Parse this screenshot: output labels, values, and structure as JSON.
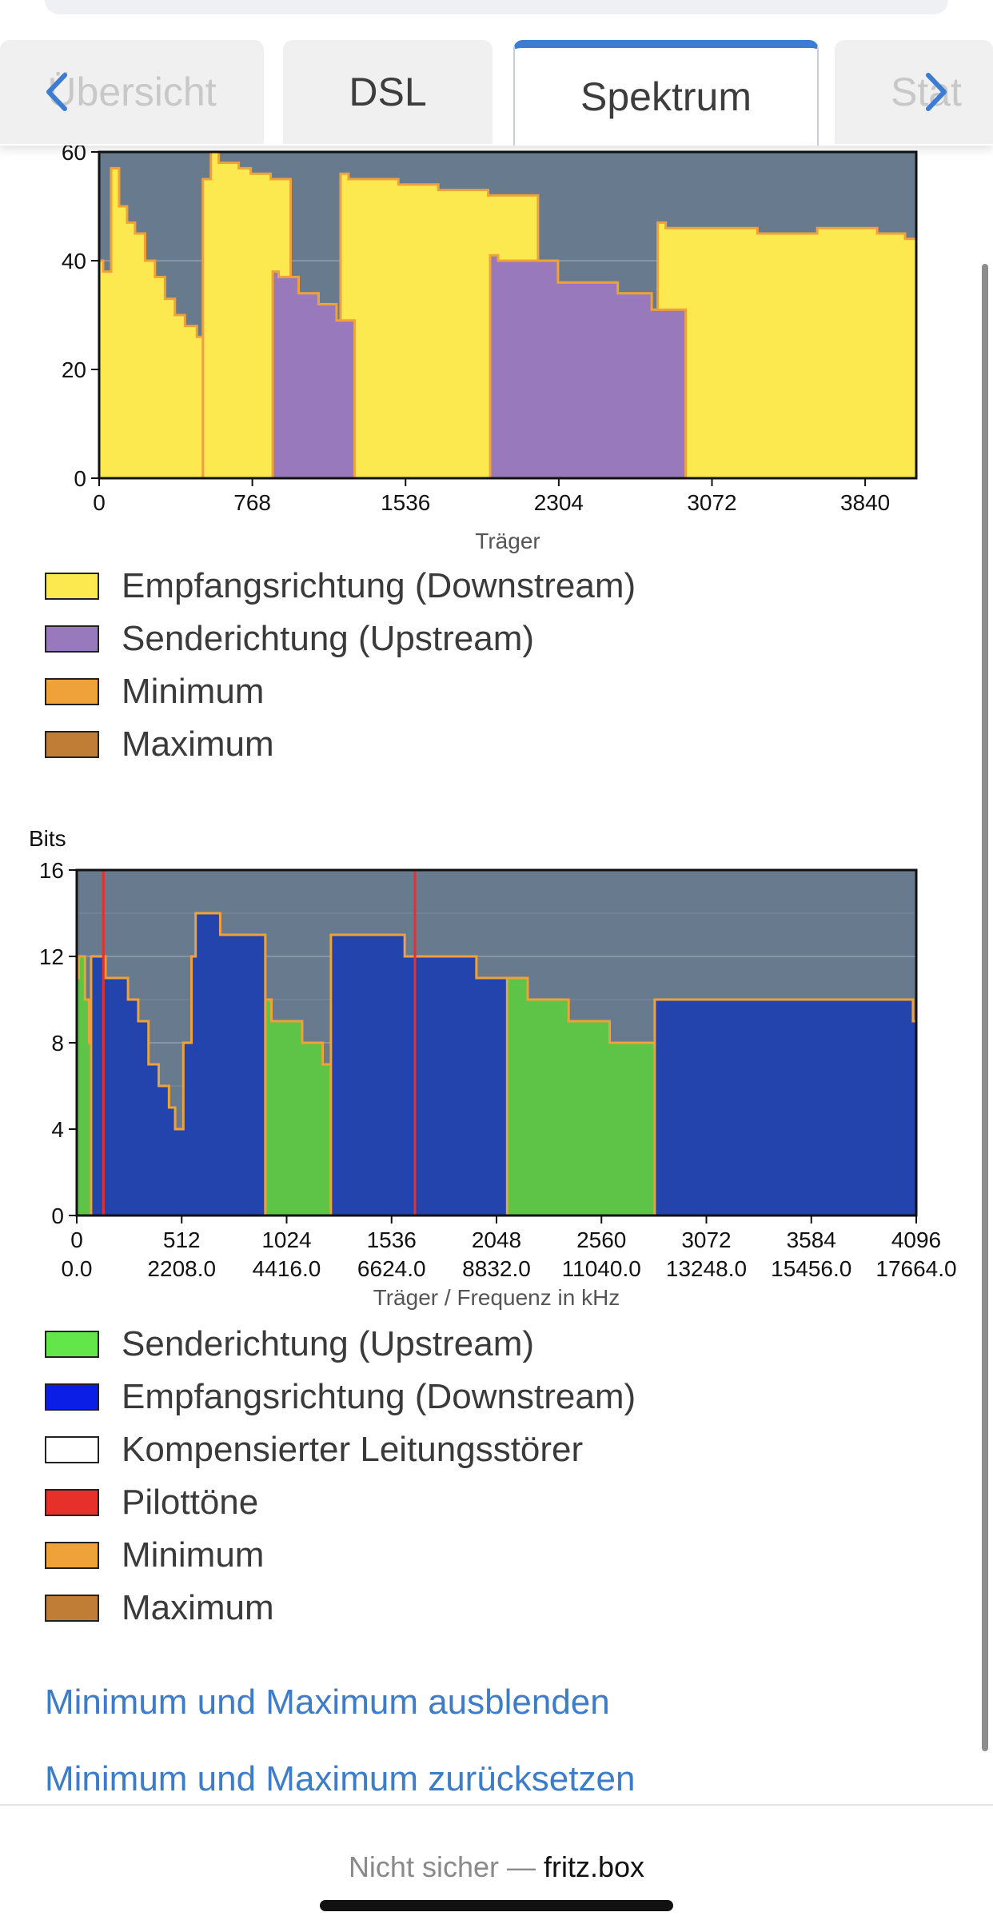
{
  "tabs": [
    {
      "label": "Übersicht",
      "active": false
    },
    {
      "label": "DSL",
      "active": false
    },
    {
      "label": "Spektrum",
      "active": true
    },
    {
      "label": "Stat",
      "active": false
    }
  ],
  "nav": {
    "prev_icon": "chevron-left-icon",
    "next_icon": "chevron-right-icon"
  },
  "chart_data": [
    {
      "type": "area",
      "title": "",
      "xlabel": "Träger",
      "ylabel": "",
      "xlim": [
        0,
        4096
      ],
      "ylim": [
        0,
        60
      ],
      "xticks": [
        0,
        768,
        1536,
        2304,
        3072,
        3840
      ],
      "yticks": [
        0,
        20,
        40,
        60
      ],
      "series": [
        {
          "name": "Empfangsrichtung (Downstream)",
          "color": "#fbe94f",
          "segments": [
            {
              "x": [
                0,
                20,
                60,
                100,
                140,
                180,
                230,
                280,
                330,
                380,
                430,
                490
              ],
              "y": [
                40,
                38,
                57,
                50,
                47,
                45,
                40,
                37,
                33,
                30,
                28,
                26
              ]
            },
            {
              "x": [
                520,
                560,
                600,
                700,
                760,
                860
              ],
              "y": [
                55,
                60,
                58,
                57,
                56,
                55
              ]
            },
            {
              "x": [
                1210,
                1250,
                1500,
                1700,
                1950
              ],
              "y": [
                56,
                55,
                54,
                53,
                52
              ]
            },
            {
              "x": [
                2800,
                2840,
                3300,
                3600,
                3900,
                4040
              ],
              "y": [
                47,
                46,
                45,
                46,
                45,
                44
              ]
            }
          ]
        },
        {
          "name": "Senderichtung (Upstream)",
          "color": "#9879bb",
          "segments": [
            {
              "x": [
                870,
                900,
                1000,
                1100,
                1190
              ],
              "y": [
                38,
                37,
                34,
                32,
                29
              ]
            },
            {
              "x": [
                1960,
                2000,
                2300,
                2600,
                2770
              ],
              "y": [
                41,
                40,
                36,
                34,
                31
              ]
            }
          ]
        },
        {
          "name": "Minimum",
          "color": "#efa13a",
          "values": []
        },
        {
          "name": "Maximum",
          "color": "#c07d35",
          "values": []
        }
      ],
      "legend_position": "bottom",
      "background": "#687a8d",
      "grid": true
    },
    {
      "type": "area",
      "title": "",
      "ylabel": "Bits",
      "xlabel": "Träger / Frequenz in kHz",
      "xlim": [
        0,
        4096
      ],
      "ylim": [
        0,
        16
      ],
      "xticks": [
        0,
        512,
        1024,
        1536,
        2048,
        2560,
        3072,
        3584,
        4096
      ],
      "xticks_freq": [
        "0.0",
        "2208.0",
        "4416.0",
        "6624.0",
        "8832.0",
        "11040.0",
        "13248.0",
        "15456.0",
        "17664.0"
      ],
      "yticks": [
        0,
        4,
        8,
        12,
        16
      ],
      "series": [
        {
          "name": "Senderichtung (Upstream)",
          "color": "#5ec447",
          "segments": [
            {
              "x": [
                0,
                10,
                40,
                60
              ],
              "y": [
                11,
                12,
                10,
                8
              ]
            },
            {
              "x": [
                870,
                880,
                950,
                1050,
                1100,
                1200,
                1225
              ],
              "y": [
                10,
                10,
                9,
                9,
                8,
                7,
                7
              ]
            },
            {
              "x": [
                1960,
                1970,
                2200,
                2400,
                2600,
                2800
              ],
              "y": [
                11,
                11,
                10,
                9,
                8,
                8
              ]
            }
          ]
        },
        {
          "name": "Empfangsrichtung (Downstream)",
          "color": "#2344ac",
          "segments": [
            {
              "x": [
                70,
                90,
                140,
                200,
                250,
                300,
                350,
                400,
                450,
                480,
                500,
                520,
                560,
                580,
                620,
                700,
                800,
                860
              ],
              "y": [
                12,
                12,
                11,
                11,
                10,
                9,
                7,
                6,
                5,
                4,
                4,
                8,
                12,
                14,
                14,
                13,
                13,
                13
              ]
            },
            {
              "x": [
                1240,
                1260,
                1400,
                1600,
                1800,
                1950
              ],
              "y": [
                13,
                13,
                13,
                12,
                12,
                11
              ]
            },
            {
              "x": [
                2820,
                2840,
                3000,
                3300,
                3600,
                3900,
                4080
              ],
              "y": [
                10,
                10,
                10,
                10,
                10,
                10,
                9
              ]
            }
          ]
        },
        {
          "name": "Kompensierter Leitungsstörer",
          "color": "#ffffff",
          "values": []
        },
        {
          "name": "Pilottöne",
          "color": "#e8302a",
          "x": [
            130,
            1650
          ]
        },
        {
          "name": "Minimum",
          "color": "#efa13a",
          "values": []
        },
        {
          "name": "Maximum",
          "color": "#c07d35",
          "values": []
        }
      ],
      "legend_position": "bottom",
      "background": "#687a8d",
      "grid": true
    }
  ],
  "links": {
    "hide": "Minimum und Maximum ausblenden",
    "reset": "Minimum und Maximum zurücksetzen"
  },
  "footer": {
    "not_secure": "Nicht sicher —",
    "host": "fritz.box"
  }
}
